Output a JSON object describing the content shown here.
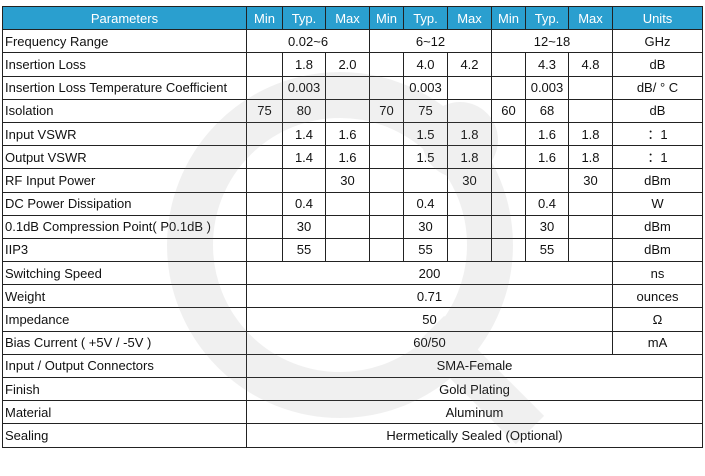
{
  "header": [
    "Parameters",
    "Min",
    "Typ.",
    "Max",
    "Min",
    "Typ.",
    "Max",
    "Min",
    "Typ.",
    "Max",
    "Units"
  ],
  "rows": [
    {
      "param": "Frequency Range",
      "typ1": "0.02~6",
      "typ2": "6~12",
      "typ3": "12~18",
      "unit": "GHz"
    },
    {
      "param": "Insertion Loss",
      "min1": "",
      "typ1": "1.8",
      "max1": "2.0",
      "min2": "",
      "typ2": "4.0",
      "max2": "4.2",
      "min3": "",
      "typ3": "4.3",
      "max3": "4.8",
      "unit": "dB"
    },
    {
      "param": "Insertion Loss Temperature Coefficient",
      "min1": "",
      "typ1": "0.003",
      "max1": "",
      "min2": "",
      "typ2": "0.003",
      "max2": "",
      "min3": "",
      "typ3": "0.003",
      "max3": "",
      "unit": "dB/ ° C"
    },
    {
      "param": "Isolation",
      "min1": "75",
      "typ1": "80",
      "max1": "",
      "min2": "70",
      "typ2": "75",
      "max2": "",
      "min3": "60",
      "typ3": "68",
      "max3": "",
      "unit": "dB"
    },
    {
      "param": "Input VSWR",
      "min1": "",
      "typ1": "1.4",
      "max1": "1.6",
      "min2": "",
      "typ2": "1.5",
      "max2": "1.8",
      "min3": "",
      "typ3": "1.6",
      "max3": "1.8",
      "unit": "：1"
    },
    {
      "param": "Output VSWR",
      "min1": "",
      "typ1": "1.4",
      "max1": "1.6",
      "min2": "",
      "typ2": "1.5",
      "max2": "1.8",
      "min3": "",
      "typ3": "1.6",
      "max3": "1.8",
      "unit": "：1"
    },
    {
      "param": "RF Input Power",
      "min1": "",
      "typ1": "",
      "max1": "30",
      "min2": "",
      "typ2": "",
      "max2": "30",
      "min3": "",
      "typ3": "",
      "max3": "30",
      "unit": "dBm"
    },
    {
      "param": "DC Power Dissipation",
      "min1": "",
      "typ1": "0.4",
      "max1": "",
      "min2": "",
      "typ2": "0.4",
      "max2": "",
      "min3": "",
      "typ3": "0.4",
      "max3": "",
      "unit": "W"
    },
    {
      "param": "0.1dB Compression Point( P0.1dB )",
      "min1": "",
      "typ1": "30",
      "max1": "",
      "min2": "",
      "typ2": "30",
      "max2": "",
      "min3": "",
      "typ3": "30",
      "max3": "",
      "unit": "dBm"
    },
    {
      "param": "IIP3",
      "min1": "",
      "typ1": "55",
      "max1": "",
      "min2": "",
      "typ2": "55",
      "max2": "",
      "min3": "",
      "typ3": "55",
      "max3": "",
      "unit": "dBm"
    },
    {
      "param": "Switching Speed",
      "value": "200",
      "unit": "ns"
    },
    {
      "param": "Weight",
      "value": "0.71",
      "unit": "ounces"
    },
    {
      "param": "Impedance",
      "value": "50",
      "unit": "Ω"
    },
    {
      "param": "Bias Current ( +5V / -5V )",
      "value": "60/50",
      "unit": "mA"
    },
    {
      "param": "Input / Output Connectors",
      "value": "SMA-Female"
    },
    {
      "param": "Finish",
      "value": "Gold Plating"
    },
    {
      "param": "Material",
      "value": "Aluminum"
    },
    {
      "param": "Sealing",
      "value": "Hermetically Sealed (Optional)"
    }
  ],
  "colors": {
    "header_bg": "#2a9fcf",
    "header_text": "#ffffff",
    "border": "#222222",
    "watermark": "#9a9a9a"
  }
}
